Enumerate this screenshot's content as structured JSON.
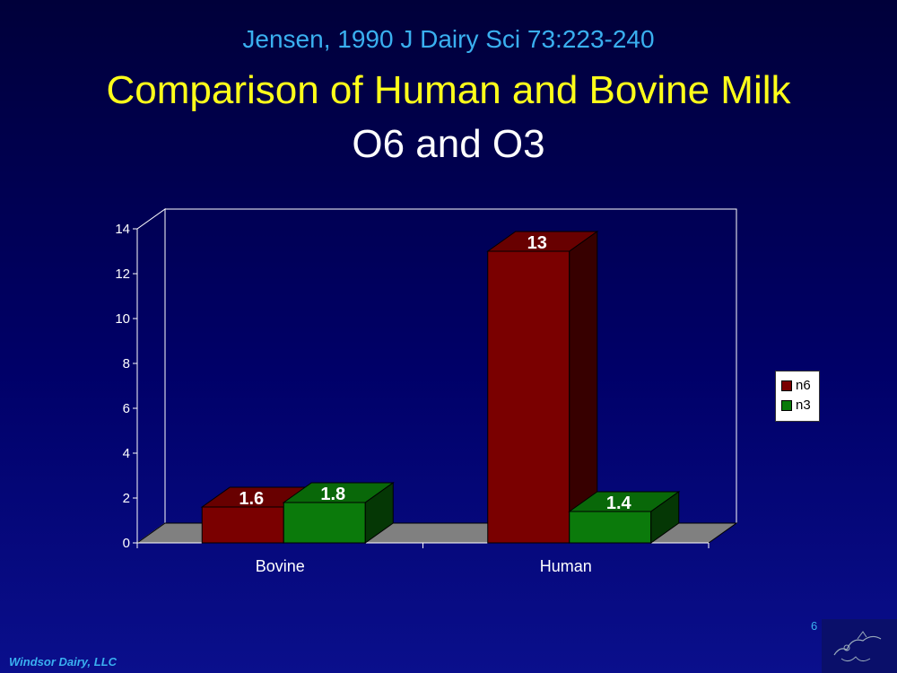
{
  "header": {
    "citation": "Jensen, 1990 J Dairy Sci 73:223-240",
    "title": "Comparison of Human and Bovine Milk",
    "subtitle": "O6 and O3"
  },
  "footer": {
    "company": "Windsor Dairy, LLC",
    "page_number": "6"
  },
  "chart_data": {
    "type": "bar",
    "three_d": true,
    "categories": [
      "Bovine",
      "Human"
    ],
    "series": [
      {
        "name": "n6",
        "values": [
          1.6,
          13
        ],
        "labels": [
          "1.6",
          "13"
        ],
        "color": "#7a0000"
      },
      {
        "name": "n3",
        "values": [
          1.8,
          1.4
        ],
        "labels": [
          "1.8",
          "1.4"
        ],
        "color": "#0b7a0b"
      }
    ],
    "ylim": [
      0,
      14
    ],
    "yticks": [
      "0",
      "2",
      "4",
      "6",
      "8",
      "10",
      "12",
      "14"
    ],
    "grid": false,
    "legend_position": "right",
    "colors": {
      "plot_back": "#ffffff",
      "floor": "#808080",
      "axis_text": "#ffffff"
    }
  }
}
